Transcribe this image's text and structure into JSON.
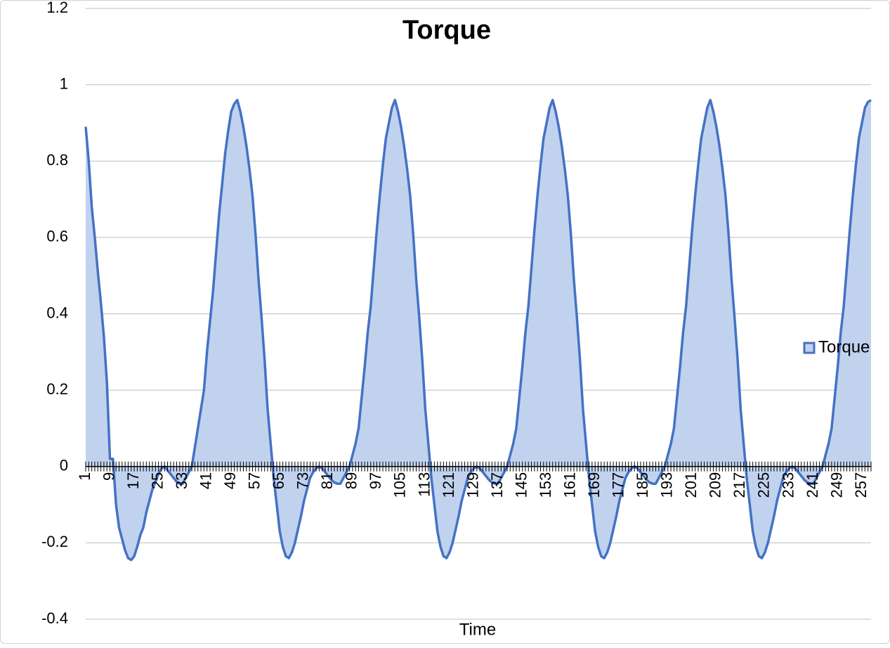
{
  "chart_data": {
    "type": "area",
    "title": "Torque",
    "x_label": "Time",
    "categories": [
      "1",
      null,
      null,
      null,
      null,
      null,
      null,
      null,
      "9",
      null,
      null,
      null,
      null,
      null,
      null,
      null,
      "17",
      null,
      null,
      null,
      null,
      null,
      null,
      null,
      "25",
      null,
      null,
      null,
      null,
      null,
      null,
      null,
      "33",
      null,
      null,
      null,
      null,
      null,
      null,
      null,
      "41",
      null,
      null,
      null,
      null,
      null,
      null,
      null,
      "49",
      null,
      null,
      null,
      null,
      null,
      null,
      null,
      "57",
      null,
      null,
      null,
      null,
      null,
      null,
      null,
      "65",
      null,
      null,
      null,
      null,
      null,
      null,
      null,
      "73",
      null,
      null,
      null,
      null,
      null,
      null,
      null,
      "81",
      null,
      null,
      null,
      null,
      null,
      null,
      null,
      "89",
      null,
      null,
      null,
      null,
      null,
      null,
      null,
      "97",
      null,
      null,
      null,
      null,
      null,
      null,
      null,
      "105",
      null,
      null,
      null,
      null,
      null,
      null,
      null,
      "113",
      null,
      null,
      null,
      null,
      null,
      null,
      null,
      "121",
      null,
      null,
      null,
      null,
      null,
      null,
      null,
      "129",
      null,
      null,
      null,
      null,
      null,
      null,
      null,
      "137",
      null,
      null,
      null,
      null,
      null,
      null,
      null,
      "145",
      null,
      null,
      null,
      null,
      null,
      null,
      null,
      "153",
      null,
      null,
      null,
      null,
      null,
      null,
      null,
      "161",
      null,
      null,
      null,
      null,
      null,
      null,
      null,
      "169",
      null,
      null,
      null,
      null,
      null,
      null,
      null,
      "177",
      null,
      null,
      null,
      null,
      null,
      null,
      null,
      "185",
      null,
      null,
      null,
      null,
      null,
      null,
      null,
      "193",
      null,
      null,
      null,
      null,
      null,
      null,
      null,
      "201",
      null,
      null,
      null,
      null,
      null,
      null,
      null,
      "209",
      null,
      null,
      null,
      null,
      null,
      null,
      null,
      "217",
      null,
      null,
      null,
      null,
      null,
      null,
      null,
      "225",
      null,
      null,
      null,
      null,
      null,
      null,
      null,
      "233",
      null,
      null,
      null,
      null,
      null,
      null,
      null,
      "241",
      null,
      null,
      null,
      null,
      null,
      null,
      null,
      "249",
      null,
      null,
      null,
      null,
      null,
      null,
      null,
      "257",
      null,
      null,
      null
    ],
    "series": [
      {
        "name": "Torque",
        "color": "#4472c4",
        "fill": "#c1d2ef",
        "values": [
          0.89,
          0.8,
          0.68,
          0.6,
          0.51,
          0.43,
          0.34,
          0.22,
          0.02,
          0.02,
          -0.1,
          -0.16,
          -0.19,
          -0.22,
          -0.24,
          -0.245,
          -0.235,
          -0.21,
          -0.18,
          -0.16,
          -0.12,
          -0.09,
          -0.06,
          -0.04,
          -0.02,
          -0.005,
          0,
          -0.01,
          -0.02,
          -0.03,
          -0.04,
          -0.045,
          -0.045,
          -0.03,
          -0.015,
          0,
          0.05,
          0.1,
          0.15,
          0.2,
          0.3,
          0.38,
          0.46,
          0.56,
          0.66,
          0.74,
          0.82,
          0.88,
          0.93,
          0.95,
          0.96,
          0.93,
          0.89,
          0.84,
          0.78,
          0.71,
          0.61,
          0.49,
          0.39,
          0.28,
          0.15,
          0.06,
          -0.03,
          -0.1,
          -0.17,
          -0.21,
          -0.235,
          -0.24,
          -0.225,
          -0.2,
          -0.165,
          -0.13,
          -0.09,
          -0.06,
          -0.03,
          -0.015,
          -0.005,
          0,
          -0.005,
          -0.015,
          -0.025,
          -0.035,
          -0.042,
          -0.045,
          -0.045,
          -0.03,
          -0.015,
          0,
          0.03,
          0.06,
          0.1,
          0.18,
          0.26,
          0.35,
          0.42,
          0.52,
          0.62,
          0.71,
          0.79,
          0.86,
          0.9,
          0.94,
          0.96,
          0.93,
          0.89,
          0.84,
          0.78,
          0.71,
          0.61,
          0.49,
          0.39,
          0.28,
          0.15,
          0.06,
          -0.03,
          -0.1,
          -0.17,
          -0.21,
          -0.235,
          -0.24,
          -0.225,
          -0.2,
          -0.165,
          -0.13,
          -0.09,
          -0.06,
          -0.03,
          -0.015,
          -0.005,
          0,
          -0.005,
          -0.015,
          -0.025,
          -0.035,
          -0.042,
          -0.045,
          -0.045,
          -0.03,
          -0.015,
          0,
          0.03,
          0.06,
          0.1,
          0.18,
          0.26,
          0.35,
          0.42,
          0.52,
          0.62,
          0.71,
          0.79,
          0.86,
          0.9,
          0.94,
          0.96,
          0.93,
          0.89,
          0.84,
          0.78,
          0.71,
          0.61,
          0.49,
          0.39,
          0.28,
          0.15,
          0.06,
          -0.03,
          -0.1,
          -0.17,
          -0.21,
          -0.235,
          -0.24,
          -0.225,
          -0.2,
          -0.165,
          -0.13,
          -0.09,
          -0.06,
          -0.03,
          -0.015,
          -0.005,
          0,
          -0.005,
          -0.015,
          -0.025,
          -0.035,
          -0.042,
          -0.045,
          -0.045,
          -0.03,
          -0.015,
          0,
          0.03,
          0.06,
          0.1,
          0.18,
          0.26,
          0.35,
          0.42,
          0.52,
          0.62,
          0.71,
          0.79,
          0.86,
          0.9,
          0.94,
          0.96,
          0.93,
          0.89,
          0.84,
          0.78,
          0.71,
          0.61,
          0.49,
          0.39,
          0.28,
          0.15,
          0.06,
          -0.03,
          -0.1,
          -0.17,
          -0.21,
          -0.235,
          -0.24,
          -0.225,
          -0.2,
          -0.165,
          -0.13,
          -0.09,
          -0.06,
          -0.03,
          -0.015,
          -0.005,
          0,
          -0.005,
          -0.015,
          -0.025,
          -0.035,
          -0.042,
          -0.045,
          -0.045,
          -0.03,
          -0.015,
          0,
          0.03,
          0.06,
          0.1,
          0.18,
          0.26,
          0.35,
          0.42,
          0.52,
          0.62,
          0.71,
          0.79,
          0.86,
          0.9,
          0.94,
          0.955,
          0.96
        ]
      }
    ],
    "ylim": [
      -0.4,
      1.2
    ],
    "yticks": [
      -0.4,
      -0.2,
      0,
      0.2,
      0.4,
      0.6,
      0.8,
      1,
      1.2
    ],
    "grid": true,
    "legend": "right"
  }
}
